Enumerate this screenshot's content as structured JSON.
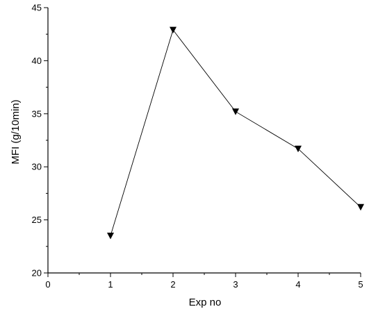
{
  "chart_data": {
    "type": "line",
    "title": "",
    "xlabel": "Exp no",
    "ylabel": "MFI (g/10min)",
    "xlim": [
      0,
      5
    ],
    "ylim": [
      20,
      45
    ],
    "x_ticks": [
      "0",
      "1",
      "2",
      "3",
      "4",
      "5"
    ],
    "y_ticks": [
      "20",
      "25",
      "30",
      "35",
      "40",
      "45"
    ],
    "grid": false,
    "legend": "none",
    "marker": "down-triangle",
    "series": [
      {
        "x": [
          1,
          2,
          3,
          4,
          5
        ],
        "y": [
          23.5,
          42.9,
          35.2,
          31.7,
          26.2
        ]
      }
    ],
    "colors": {
      "line": "#000000",
      "marker": "#000000",
      "axis": "#000000"
    }
  }
}
